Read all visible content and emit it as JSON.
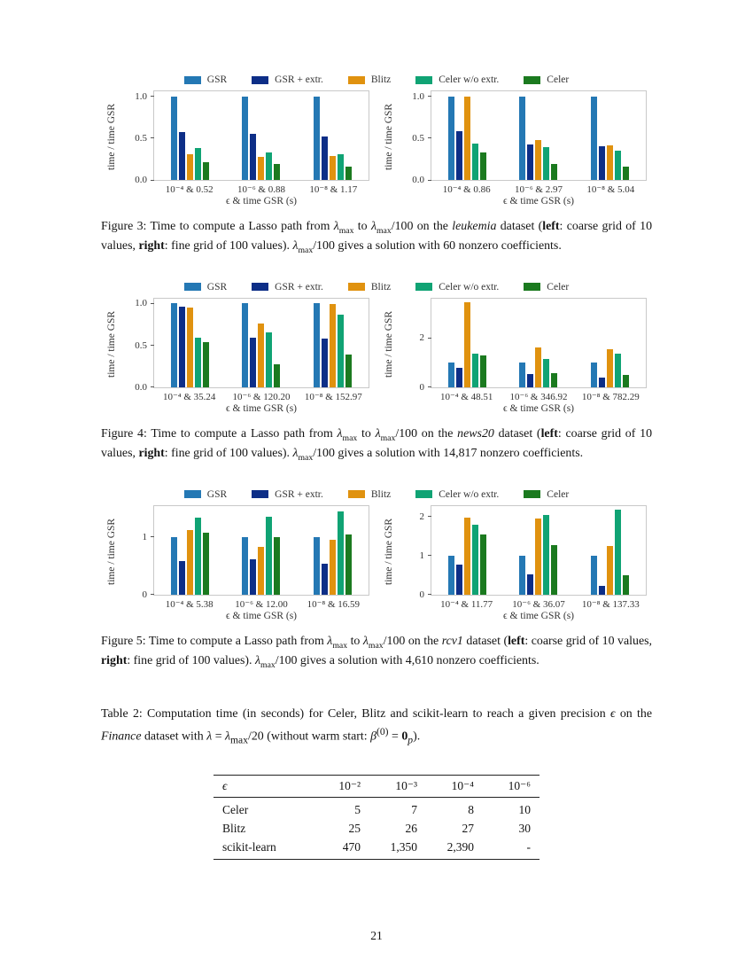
{
  "page": {
    "number": "21"
  },
  "legend": {
    "items": [
      {
        "label": "GSR",
        "color": "#2478b4"
      },
      {
        "label": "GSR + extr.",
        "color": "#0d2e87"
      },
      {
        "label": "Blitz",
        "color": "#e0920f"
      },
      {
        "label": "Celer w/o extr.",
        "color": "#10a374"
      },
      {
        "label": "Celer",
        "color": "#1b7a1f"
      }
    ]
  },
  "chart_data": [
    {
      "id": "figure3-left",
      "type": "bar",
      "figure": "Figure 3",
      "position": "left",
      "xlabel": "ϵ & time GSR (s)",
      "ylabel": "time / time GSR",
      "categories": [
        "10⁻⁴ & 0.52",
        "10⁻⁶ & 0.88",
        "10⁻⁸ & 1.17"
      ],
      "series": [
        {
          "name": "GSR",
          "values": [
            1.0,
            1.0,
            1.0
          ]
        },
        {
          "name": "GSR + extr.",
          "values": [
            0.57,
            0.55,
            0.52
          ]
        },
        {
          "name": "Blitz",
          "values": [
            0.31,
            0.28,
            0.29
          ]
        },
        {
          "name": "Celer w/o extr.",
          "values": [
            0.38,
            0.33,
            0.31
          ]
        },
        {
          "name": "Celer",
          "values": [
            0.21,
            0.19,
            0.16
          ]
        }
      ],
      "ylim": [
        0,
        1.06
      ],
      "yticks": [
        0,
        0.5,
        1
      ],
      "ytick_labels": [
        "0.0",
        "0.5",
        "1.0"
      ],
      "grid": false,
      "legend_position": "above"
    },
    {
      "id": "figure3-right",
      "type": "bar",
      "figure": "Figure 3",
      "position": "right",
      "xlabel": "ϵ & time GSR (s)",
      "ylabel": "time / time GSR",
      "categories": [
        "10⁻⁴ & 0.86",
        "10⁻⁶ & 2.97",
        "10⁻⁸ & 5.04"
      ],
      "series": [
        {
          "name": "GSR",
          "values": [
            1.0,
            1.0,
            1.0
          ]
        },
        {
          "name": "GSR + extr.",
          "values": [
            0.58,
            0.42,
            0.4
          ]
        },
        {
          "name": "Blitz",
          "values": [
            1.0,
            0.48,
            0.41
          ]
        },
        {
          "name": "Celer w/o extr.",
          "values": [
            0.44,
            0.39,
            0.35
          ]
        },
        {
          "name": "Celer",
          "values": [
            0.33,
            0.19,
            0.16
          ]
        }
      ],
      "ylim": [
        0,
        1.06
      ],
      "yticks": [
        0,
        0.5,
        1
      ],
      "ytick_labels": [
        "0.0",
        "0.5",
        "1.0"
      ],
      "grid": false,
      "legend_position": "above"
    },
    {
      "id": "figure4-left",
      "type": "bar",
      "figure": "Figure 4",
      "position": "left",
      "xlabel": "ϵ & time GSR (s)",
      "ylabel": "time / time GSR",
      "categories": [
        "10⁻⁴ & 35.24",
        "10⁻⁶ & 120.20",
        "10⁻⁸ & 152.97"
      ],
      "series": [
        {
          "name": "GSR",
          "values": [
            1.0,
            1.0,
            1.0
          ]
        },
        {
          "name": "GSR + extr.",
          "values": [
            0.96,
            0.59,
            0.58
          ]
        },
        {
          "name": "Blitz",
          "values": [
            0.95,
            0.76,
            0.99
          ]
        },
        {
          "name": "Celer w/o extr.",
          "values": [
            0.59,
            0.65,
            0.87
          ]
        },
        {
          "name": "Celer",
          "values": [
            0.54,
            0.27,
            0.39
          ]
        }
      ],
      "ylim": [
        0,
        1.06
      ],
      "yticks": [
        0,
        0.5,
        1
      ],
      "ytick_labels": [
        "0.0",
        "0.5",
        "1.0"
      ],
      "grid": false,
      "legend_position": "above"
    },
    {
      "id": "figure4-right",
      "type": "bar",
      "figure": "Figure 4",
      "position": "right",
      "xlabel": "ϵ & time GSR (s)",
      "ylabel": "time / time GSR",
      "categories": [
        "10⁻⁴ & 48.51",
        "10⁻⁶ & 346.92",
        "10⁻⁸ & 782.29"
      ],
      "series": [
        {
          "name": "GSR",
          "values": [
            1.0,
            1.0,
            1.0
          ]
        },
        {
          "name": "GSR + extr.",
          "values": [
            0.78,
            0.52,
            0.38
          ]
        },
        {
          "name": "Blitz",
          "values": [
            3.45,
            1.62,
            1.55
          ]
        },
        {
          "name": "Celer w/o extr.",
          "values": [
            1.35,
            1.15,
            1.35
          ]
        },
        {
          "name": "Celer",
          "values": [
            1.27,
            0.57,
            0.5
          ]
        }
      ],
      "ylim": [
        0,
        3.6
      ],
      "yticks": [
        0,
        2
      ],
      "ytick_labels": [
        "0",
        "2"
      ],
      "grid": false,
      "legend_position": "above"
    },
    {
      "id": "figure5-left",
      "type": "bar",
      "figure": "Figure 5",
      "position": "left",
      "xlabel": "ϵ & time GSR (s)",
      "ylabel": "time / time GSR",
      "categories": [
        "10⁻⁴ & 5.38",
        "10⁻⁶ & 12.00",
        "10⁻⁸ & 16.59"
      ],
      "series": [
        {
          "name": "GSR",
          "values": [
            1.0,
            1.0,
            1.0
          ]
        },
        {
          "name": "GSR + extr.",
          "values": [
            0.58,
            0.62,
            0.54
          ]
        },
        {
          "name": "Blitz",
          "values": [
            1.12,
            0.83,
            0.96
          ]
        },
        {
          "name": "Celer w/o extr.",
          "values": [
            1.34,
            1.36,
            1.45
          ]
        },
        {
          "name": "Celer",
          "values": [
            1.07,
            1.0,
            1.04
          ]
        }
      ],
      "ylim": [
        0,
        1.55
      ],
      "yticks": [
        0,
        1
      ],
      "ytick_labels": [
        "0",
        "1"
      ],
      "grid": false,
      "legend_position": "above"
    },
    {
      "id": "figure5-right",
      "type": "bar",
      "figure": "Figure 5",
      "position": "right",
      "xlabel": "ϵ & time GSR (s)",
      "ylabel": "time / time GSR",
      "categories": [
        "10⁻⁴ & 11.77",
        "10⁻⁶ & 36.07",
        "10⁻⁸ & 137.33"
      ],
      "series": [
        {
          "name": "GSR",
          "values": [
            1.0,
            1.0,
            1.0
          ]
        },
        {
          "name": "GSR + extr.",
          "values": [
            0.76,
            0.52,
            0.22
          ]
        },
        {
          "name": "Blitz",
          "values": [
            1.97,
            1.95,
            1.24
          ]
        },
        {
          "name": "Celer w/o extr.",
          "values": [
            1.8,
            2.05,
            2.18
          ]
        },
        {
          "name": "Celer",
          "values": [
            1.53,
            1.27,
            0.5
          ]
        }
      ],
      "ylim": [
        0,
        2.28
      ],
      "yticks": [
        0,
        1,
        2
      ],
      "ytick_labels": [
        "0",
        "1",
        "2"
      ],
      "grid": false,
      "legend_position": "above"
    }
  ],
  "figures": [
    {
      "name": "figure-3",
      "caption": [
        {
          "t": "Figure 3: Time to compute a Lasso path from "
        },
        {
          "t": "λ",
          "i": true
        },
        {
          "t": "max",
          "sub": true
        },
        {
          "t": " to "
        },
        {
          "t": "λ",
          "i": true
        },
        {
          "t": "max",
          "sub": true
        },
        {
          "t": "/100 on the "
        },
        {
          "t": "leukemia",
          "i": true
        },
        {
          "t": " dataset ("
        },
        {
          "t": "left",
          "b": true
        },
        {
          "t": ": coarse grid of 10 values, "
        },
        {
          "t": "right",
          "b": true
        },
        {
          "t": ": fine grid of 100 values). "
        },
        {
          "t": "λ",
          "i": true
        },
        {
          "t": "max",
          "sub": true
        },
        {
          "t": "/100 gives a solution with 60 nonzero coefficients."
        }
      ]
    },
    {
      "name": "figure-4",
      "caption": [
        {
          "t": "Figure 4: Time to compute a Lasso path from "
        },
        {
          "t": "λ",
          "i": true
        },
        {
          "t": "max",
          "sub": true
        },
        {
          "t": " to "
        },
        {
          "t": "λ",
          "i": true
        },
        {
          "t": "max",
          "sub": true
        },
        {
          "t": "/100 on the "
        },
        {
          "t": "news20",
          "i": true
        },
        {
          "t": " dataset ("
        },
        {
          "t": "left",
          "b": true
        },
        {
          "t": ": coarse grid of 10 values, "
        },
        {
          "t": "right",
          "b": true
        },
        {
          "t": ": fine grid of 100 values). "
        },
        {
          "t": "λ",
          "i": true
        },
        {
          "t": "max",
          "sub": true
        },
        {
          "t": "/100 gives a solution with 14,817 nonzero coefficients."
        }
      ]
    },
    {
      "name": "figure-5",
      "caption": [
        {
          "t": "Figure 5: Time to compute a Lasso path from "
        },
        {
          "t": "λ",
          "i": true
        },
        {
          "t": "max",
          "sub": true
        },
        {
          "t": " to "
        },
        {
          "t": "λ",
          "i": true
        },
        {
          "t": "max",
          "sub": true
        },
        {
          "t": "/100 on the "
        },
        {
          "t": "rcv1",
          "i": true
        },
        {
          "t": " dataset ("
        },
        {
          "t": "left",
          "b": true
        },
        {
          "t": ": coarse grid of 10 values, "
        },
        {
          "t": "right",
          "b": true
        },
        {
          "t": ": fine grid of 100 values). "
        },
        {
          "t": "λ",
          "i": true
        },
        {
          "t": "max",
          "sub": true
        },
        {
          "t": "/100 gives a solution with 4,610 nonzero coefficients."
        }
      ]
    }
  ],
  "table": {
    "caption": [
      {
        "t": "Table 2: Computation time (in seconds) for Celer, Blitz and scikit-learn to reach a given precision "
      },
      {
        "t": "ϵ",
        "i": true
      },
      {
        "t": " on the "
      },
      {
        "t": "Finance",
        "i": true
      },
      {
        "t": " dataset with "
      },
      {
        "t": "λ",
        "i": true
      },
      {
        "t": " = "
      },
      {
        "t": "λ",
        "i": true
      },
      {
        "t": "max",
        "sub": true
      },
      {
        "t": "/20 (without warm start: "
      },
      {
        "t": "β",
        "i": true
      },
      {
        "t": "(0)",
        "sup": true
      },
      {
        "t": " = "
      },
      {
        "t": "0",
        "b": true
      },
      {
        "t": "p",
        "sub": true,
        "i": true
      },
      {
        "t": ")."
      }
    ],
    "columns": [
      "ϵ",
      "10⁻²",
      "10⁻³",
      "10⁻⁴",
      "10⁻⁶"
    ],
    "rows": [
      [
        "Celer",
        "5",
        "7",
        "8",
        "10"
      ],
      [
        "Blitz",
        "25",
        "26",
        "27",
        "30"
      ],
      [
        "scikit-learn",
        "470",
        "1,350",
        "2,390",
        "-"
      ]
    ]
  }
}
